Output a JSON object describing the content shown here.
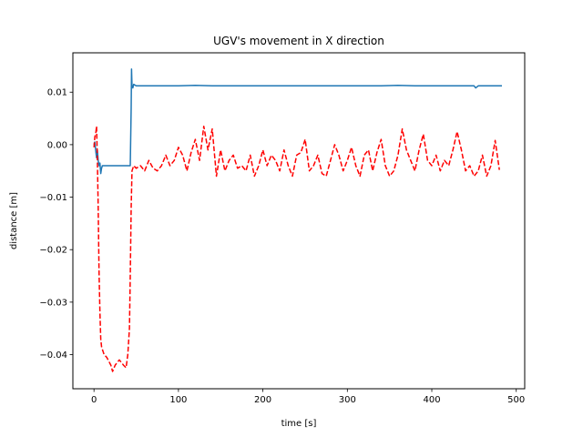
{
  "chart_data": {
    "type": "line",
    "title": "UGV's movement in X direction",
    "xlabel": "time [s]",
    "ylabel": "distance [m]",
    "xlim": [
      -25,
      510
    ],
    "ylim": [
      -0.0465,
      0.0175
    ],
    "xticks": [
      0,
      100,
      200,
      300,
      400,
      500
    ],
    "xtick_labels": [
      "0",
      "100",
      "200",
      "300",
      "400",
      "500"
    ],
    "yticks": [
      -0.04,
      -0.03,
      -0.02,
      -0.01,
      0.0,
      0.01
    ],
    "ytick_labels": [
      "−0.04",
      "−0.03",
      "−0.02",
      "−0.01",
      "0.00",
      "0.01"
    ],
    "grid": false,
    "series": [
      {
        "color": "#1f77b4",
        "style": "solid",
        "x": [
          0,
          1,
          2,
          3,
          4,
          5,
          6,
          7,
          8,
          9,
          10,
          20,
          30,
          40,
          43,
          44,
          44.5,
          45,
          46,
          47,
          50,
          60,
          80,
          100,
          120,
          140,
          160,
          180,
          200,
          220,
          240,
          260,
          280,
          300,
          320,
          340,
          360,
          380,
          400,
          420,
          440,
          450,
          452,
          455,
          460,
          470,
          483
        ],
        "y": [
          0.0,
          0.0005,
          -0.001,
          -0.0025,
          -0.001,
          -0.003,
          -0.004,
          -0.0035,
          -0.0055,
          -0.0045,
          -0.004,
          -0.004,
          -0.004,
          -0.004,
          -0.004,
          0.007,
          0.0144,
          0.0112,
          0.0108,
          0.0115,
          0.0112,
          0.0112,
          0.0112,
          0.0112,
          0.0113,
          0.0112,
          0.0112,
          0.0112,
          0.0112,
          0.0112,
          0.0112,
          0.0112,
          0.0112,
          0.0112,
          0.0112,
          0.0112,
          0.0113,
          0.0112,
          0.0112,
          0.0112,
          0.0112,
          0.0112,
          0.0108,
          0.0112,
          0.0112,
          0.0112,
          0.0112
        ]
      },
      {
        "color": "#ff0000",
        "style": "dashed",
        "x": [
          0,
          1,
          2,
          3,
          4,
          5,
          6,
          7,
          8,
          9,
          10,
          12,
          15,
          20,
          22,
          25,
          30,
          35,
          38,
          40,
          42,
          43,
          44,
          45,
          47,
          50,
          55,
          60,
          65,
          70,
          75,
          80,
          85,
          90,
          95,
          100,
          105,
          110,
          115,
          120,
          125,
          130,
          135,
          140,
          145,
          150,
          155,
          160,
          165,
          170,
          175,
          180,
          185,
          190,
          195,
          200,
          205,
          210,
          215,
          220,
          225,
          230,
          235,
          240,
          245,
          250,
          255,
          260,
          265,
          270,
          275,
          280,
          285,
          290,
          295,
          300,
          305,
          310,
          315,
          320,
          325,
          330,
          335,
          340,
          345,
          350,
          355,
          360,
          365,
          370,
          375,
          380,
          385,
          390,
          395,
          400,
          405,
          410,
          415,
          420,
          425,
          430,
          435,
          440,
          445,
          450,
          455,
          460,
          465,
          470,
          475,
          480
        ],
        "y": [
          -0.0005,
          0.0015,
          0.002,
          0.0035,
          -0.003,
          -0.012,
          -0.024,
          -0.032,
          -0.037,
          -0.0385,
          -0.039,
          -0.04,
          -0.0405,
          -0.042,
          -0.0432,
          -0.042,
          -0.041,
          -0.042,
          -0.0425,
          -0.04,
          -0.035,
          -0.025,
          -0.012,
          -0.005,
          -0.004,
          -0.0045,
          -0.004,
          -0.005,
          -0.003,
          -0.0045,
          -0.005,
          -0.004,
          -0.002,
          -0.004,
          -0.003,
          -0.0005,
          -0.002,
          -0.005,
          -0.0015,
          0.001,
          -0.003,
          0.0035,
          -0.001,
          0.003,
          -0.006,
          -0.001,
          -0.005,
          -0.003,
          -0.002,
          -0.0045,
          -0.004,
          -0.005,
          -0.002,
          -0.006,
          -0.004,
          -0.001,
          -0.004,
          -0.002,
          -0.003,
          -0.005,
          -0.001,
          -0.004,
          -0.006,
          -0.002,
          -0.0015,
          0.001,
          -0.005,
          -0.004,
          -0.002,
          -0.0055,
          -0.006,
          -0.003,
          0.0,
          -0.002,
          -0.005,
          -0.003,
          -0.0005,
          -0.004,
          -0.006,
          -0.002,
          -0.001,
          -0.005,
          -0.0015,
          0.001,
          -0.004,
          -0.006,
          -0.005,
          -0.002,
          0.003,
          -0.001,
          -0.003,
          -0.005,
          -0.001,
          0.002,
          -0.003,
          -0.004,
          -0.002,
          -0.005,
          -0.003,
          -0.004,
          -0.001,
          0.0025,
          -0.001,
          -0.005,
          -0.004,
          -0.006,
          -0.005,
          -0.002,
          -0.006,
          -0.004,
          0.0008,
          -0.0048
        ]
      }
    ]
  }
}
